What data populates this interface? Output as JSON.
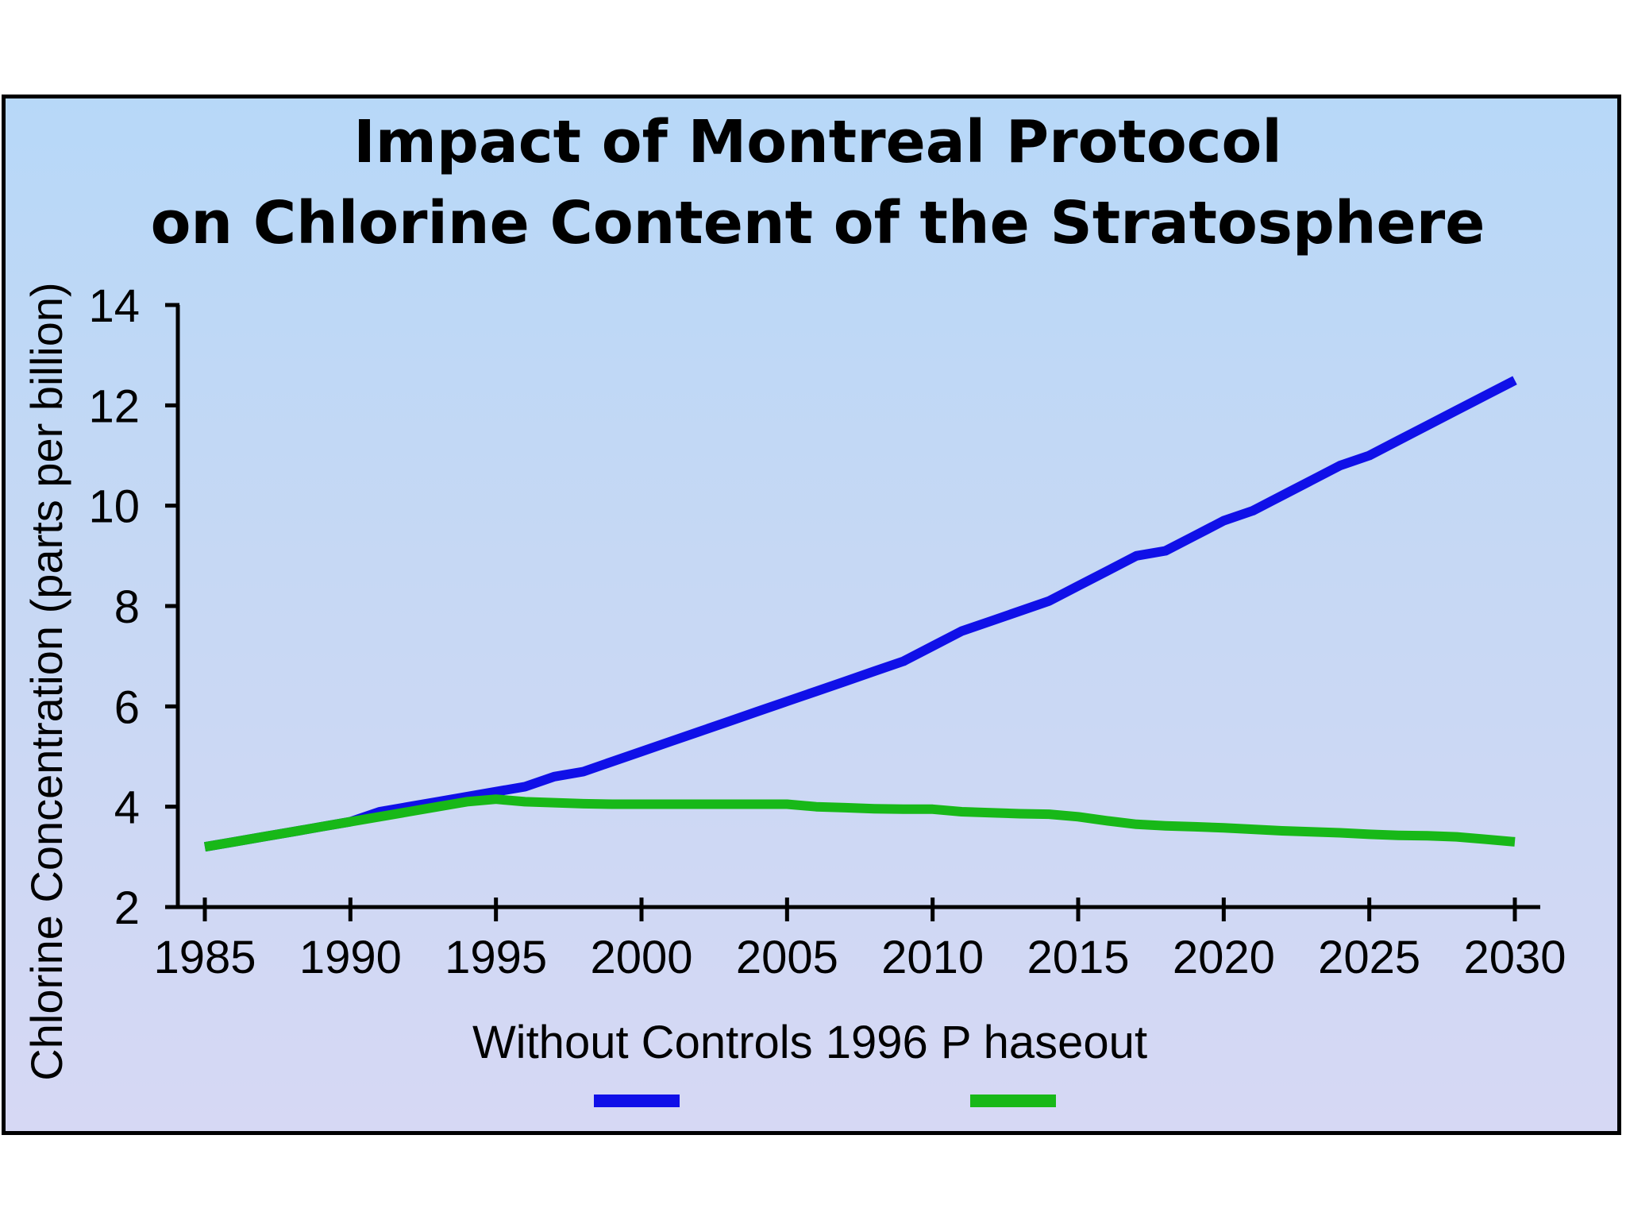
{
  "chart_data": {
    "type": "line",
    "title": [
      "Impact of Montreal Protocol",
      "on Chlorine Content of the Stratosphere"
    ],
    "xlabel": "",
    "ylabel": "Chlorine Concentration (parts per billion)",
    "xlim": [
      1984,
      2032
    ],
    "ylim": [
      2,
      14
    ],
    "x_ticks": [
      1985,
      1990,
      1995,
      2000,
      2005,
      2010,
      2015,
      2020,
      2025,
      2030
    ],
    "y_ticks": [
      2,
      4,
      6,
      8,
      10,
      12,
      14
    ],
    "grid": false,
    "legend_position": "bottom-center",
    "legend_text": "Without Controls 1996 P haseout",
    "x": [
      1985,
      1986,
      1987,
      1988,
      1989,
      1990,
      1991,
      1992,
      1993,
      1994,
      1995,
      1996,
      1997,
      1998,
      1999,
      2000,
      2001,
      2002,
      2003,
      2004,
      2005,
      2006,
      2007,
      2008,
      2009,
      2010,
      2011,
      2012,
      2013,
      2014,
      2015,
      2016,
      2017,
      2018,
      2019,
      2020,
      2021,
      2022,
      2023,
      2024,
      2025,
      2026,
      2027,
      2028,
      2029,
      2030
    ],
    "series": [
      {
        "name": "Without Controls",
        "color": "#1010e8",
        "values": [
          3.2,
          3.3,
          3.4,
          3.5,
          3.6,
          3.7,
          3.9,
          4.0,
          4.1,
          4.2,
          4.3,
          4.4,
          4.6,
          4.7,
          4.9,
          5.1,
          5.3,
          5.5,
          5.7,
          5.9,
          6.1,
          6.3,
          6.5,
          6.7,
          6.9,
          7.2,
          7.5,
          7.7,
          7.9,
          8.1,
          8.4,
          8.7,
          9.0,
          9.1,
          9.4,
          9.7,
          9.9,
          10.2,
          10.5,
          10.8,
          11.0,
          11.3,
          11.6,
          11.9,
          12.2,
          12.5
        ]
      },
      {
        "name": "1996 P haseout",
        "color": "#18b818",
        "values": [
          3.2,
          3.3,
          3.4,
          3.5,
          3.6,
          3.7,
          3.8,
          3.9,
          4.0,
          4.1,
          4.15,
          4.1,
          4.08,
          4.06,
          4.05,
          4.05,
          4.05,
          4.05,
          4.05,
          4.05,
          4.05,
          4.0,
          3.98,
          3.96,
          3.95,
          3.95,
          3.9,
          3.88,
          3.86,
          3.85,
          3.8,
          3.72,
          3.65,
          3.62,
          3.6,
          3.58,
          3.55,
          3.52,
          3.5,
          3.48,
          3.45,
          3.43,
          3.42,
          3.4,
          3.35,
          3.3
        ]
      }
    ]
  }
}
